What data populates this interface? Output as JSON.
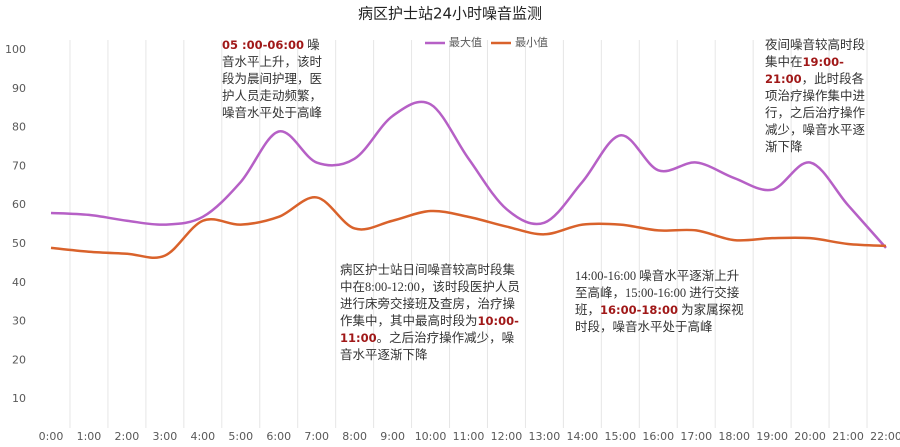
{
  "chart_data": {
    "type": "line",
    "title": "病区护士站24小时噪音监测",
    "categories": [
      "0:00",
      "1:00",
      "2:00",
      "3:00",
      "4:00",
      "5:00",
      "6:00",
      "7:00",
      "8:00",
      "9:00",
      "10:00",
      "11:00",
      "12:00",
      "13:00",
      "14:00",
      "15:00",
      "16:00",
      "17:00",
      "18:00",
      "19:00",
      "20:00",
      "21:00",
      "22:00"
    ],
    "series": [
      {
        "name": "最大值",
        "color": "#b660c6",
        "values": [
          58,
          57.5,
          56,
          55,
          57,
          66,
          79,
          71,
          72,
          83,
          86,
          72,
          59,
          55.5,
          66,
          78,
          69,
          71,
          67,
          64,
          71,
          60,
          49
        ]
      },
      {
        "name": "最小值",
        "color": "#d9622b",
        "values": [
          49,
          48,
          47.5,
          47,
          56,
          55,
          57,
          62,
          54,
          56,
          58.5,
          57,
          54.5,
          52.5,
          55,
          55,
          53.5,
          53.5,
          51,
          51.5,
          51.5,
          50,
          49.5
        ]
      }
    ],
    "ylim": [
      0,
      100
    ],
    "yticks": [
      10,
      20,
      30,
      40,
      50,
      60,
      70,
      80,
      90,
      100
    ],
    "grid": true,
    "legend": "top",
    "annotations": [
      {
        "parts": [
          {
            "text": "05 :00-06:00",
            "emphasis": true
          },
          {
            "text": " 噪音水平上升，该时段为晨间护理，医护人员走动频繁，噪音水平处于高峰",
            "emphasis": false
          }
        ]
      },
      {
        "parts": [
          {
            "text": "病区护士站日间噪音较高时段集中在8:00-12:00，该时段医护人员进行床旁交接班及查房，治疗操作集中，其中最高时段为",
            "emphasis": false
          },
          {
            "text": "10:00-11:00",
            "emphasis": true
          },
          {
            "text": "。之后治疗操作减少，噪音水平逐渐下降",
            "emphasis": false
          }
        ]
      },
      {
        "parts": [
          {
            "text": "14:00-16:00 噪音水平逐渐上升至高峰，15:00-16:00 进行交接班，",
            "emphasis": false
          },
          {
            "text": "16:00-18:00",
            "emphasis": true
          },
          {
            "text": " 为家属探视时段，噪音水平处于高峰",
            "emphasis": false
          }
        ]
      },
      {
        "parts": [
          {
            "text": "夜间噪音较高时段集中在",
            "emphasis": false
          },
          {
            "text": "19:00-21:00",
            "emphasis": true
          },
          {
            "text": "，此时段各项治疗操作集中进行，之后治疗操作减少，噪音水平逐渐下降",
            "emphasis": false
          }
        ]
      }
    ]
  }
}
